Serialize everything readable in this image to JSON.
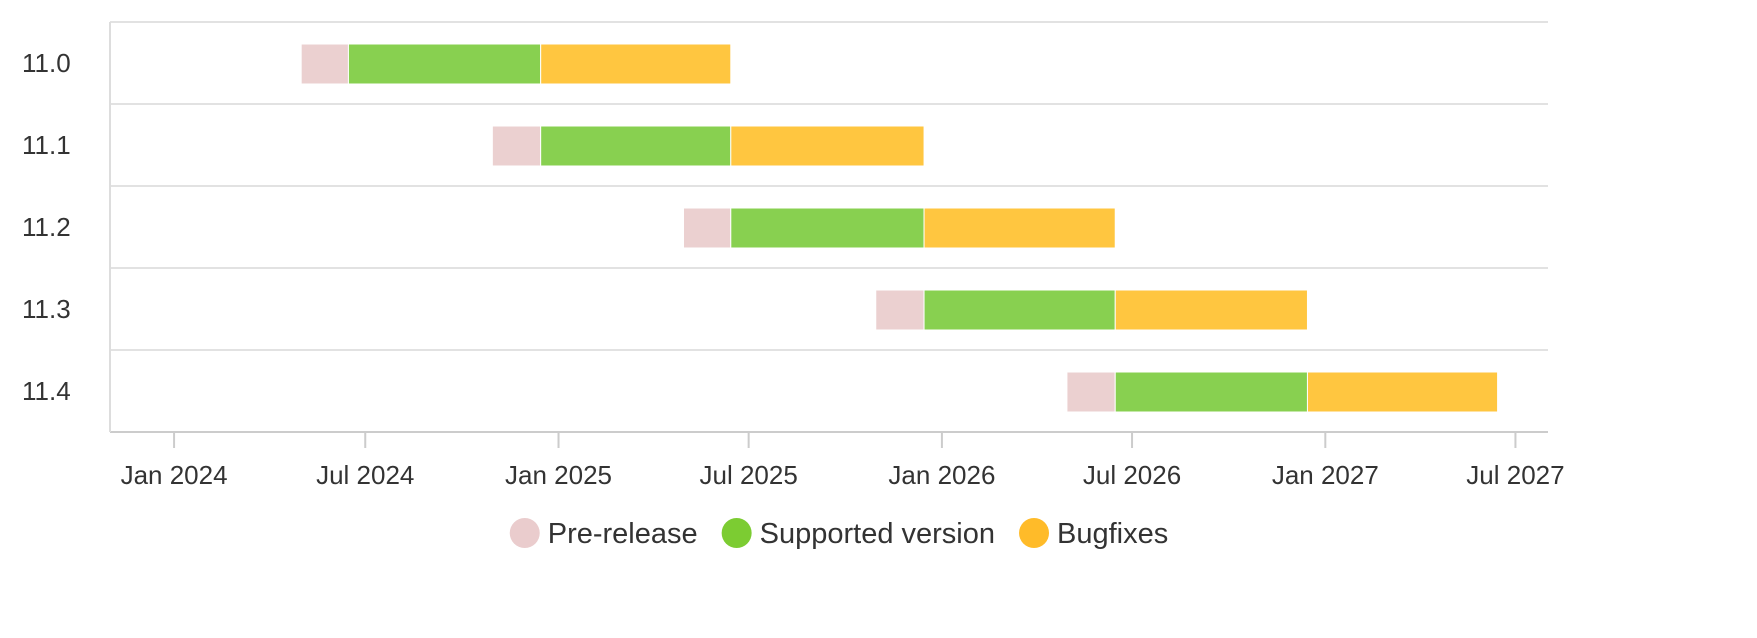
{
  "chart_data": {
    "type": "bar",
    "orientation": "horizontal",
    "stacked": true,
    "title": "",
    "xlabel": "",
    "ylabel": "",
    "categories": [
      "11.0",
      "11.1",
      "11.2",
      "11.3",
      "11.4"
    ],
    "x_axis": {
      "kind": "date",
      "range": [
        "2023-11-01",
        "2027-08-01"
      ],
      "ticks": [
        {
          "date": "2024-01-01",
          "label": "Jan 2024"
        },
        {
          "date": "2024-07-01",
          "label": "Jul 2024"
        },
        {
          "date": "2025-01-01",
          "label": "Jan 2025"
        },
        {
          "date": "2025-07-01",
          "label": "Jul 2025"
        },
        {
          "date": "2026-01-01",
          "label": "Jan 2026"
        },
        {
          "date": "2026-07-01",
          "label": "Jul 2026"
        },
        {
          "date": "2027-01-01",
          "label": "Jan 2027"
        },
        {
          "date": "2027-07-01",
          "label": "Jul 2027"
        }
      ]
    },
    "grid": true,
    "legend_position": "bottom-center",
    "series": [
      {
        "name": "Pre-release",
        "color": "#ebd0d0",
        "legend_color": "#eacccd",
        "ranges": [
          [
            "2024-05-01",
            "2024-06-15"
          ],
          [
            "2024-10-30",
            "2024-12-15"
          ],
          [
            "2025-04-30",
            "2025-06-14"
          ],
          [
            "2025-10-30",
            "2025-12-15"
          ],
          [
            "2026-04-30",
            "2026-06-15"
          ]
        ]
      },
      {
        "name": "Supported version",
        "color": "#88d050",
        "legend_color": "#7ccc32",
        "ranges": [
          [
            "2024-06-15",
            "2024-12-15"
          ],
          [
            "2024-12-15",
            "2025-06-14"
          ],
          [
            "2025-06-14",
            "2025-12-15"
          ],
          [
            "2025-12-15",
            "2026-06-15"
          ],
          [
            "2026-06-15",
            "2026-12-15"
          ]
        ]
      },
      {
        "name": "Bugfixes",
        "color": "#ffc640",
        "legend_color": "#ffbb29",
        "ranges": [
          [
            "2024-12-15",
            "2025-06-14"
          ],
          [
            "2025-06-14",
            "2025-12-15"
          ],
          [
            "2025-12-15",
            "2026-06-15"
          ],
          [
            "2026-06-15",
            "2026-12-15"
          ],
          [
            "2026-12-15",
            "2027-06-14"
          ]
        ]
      }
    ]
  }
}
